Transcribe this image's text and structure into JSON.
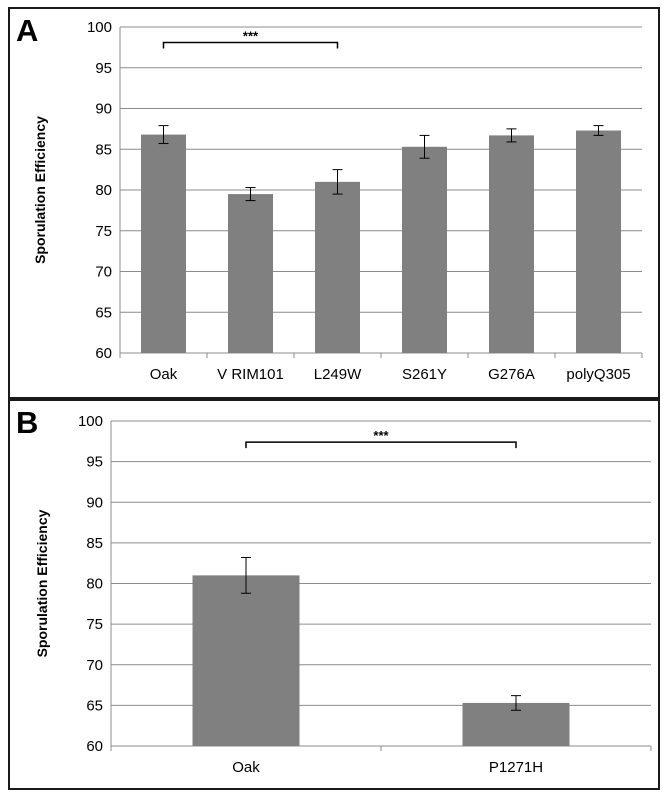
{
  "chart_data": [
    {
      "panel_label": "A",
      "type": "bar",
      "ylabel": "Sporulation Efficiency",
      "ylim": [
        60,
        100
      ],
      "yticks": [
        60,
        65,
        70,
        75,
        80,
        85,
        90,
        95,
        100
      ],
      "grid": true,
      "categories": [
        "Oak",
        "V RIM101",
        "L249W",
        "S261Y",
        "G276A",
        "polyQ305"
      ],
      "values": [
        86.8,
        79.5,
        81.0,
        85.3,
        86.7,
        87.3
      ],
      "errors": [
        1.1,
        0.8,
        1.5,
        1.4,
        0.8,
        0.6
      ],
      "bar_color": "#808080",
      "significance": [
        {
          "from": "Oak",
          "to": "L249W",
          "label": "***",
          "y": 98.1
        }
      ]
    },
    {
      "panel_label": "B",
      "type": "bar",
      "ylabel": "Sporulation Efficiency",
      "ylim": [
        60,
        100
      ],
      "yticks": [
        60,
        65,
        70,
        75,
        80,
        85,
        90,
        95,
        100
      ],
      "grid": true,
      "categories": [
        "Oak",
        "P1271H"
      ],
      "values": [
        81.0,
        65.3
      ],
      "errors": [
        2.2,
        0.9
      ],
      "bar_color": "#808080",
      "significance": [
        {
          "from": "Oak",
          "to": "P1271H",
          "label": "***",
          "y": 97.4
        }
      ]
    }
  ]
}
